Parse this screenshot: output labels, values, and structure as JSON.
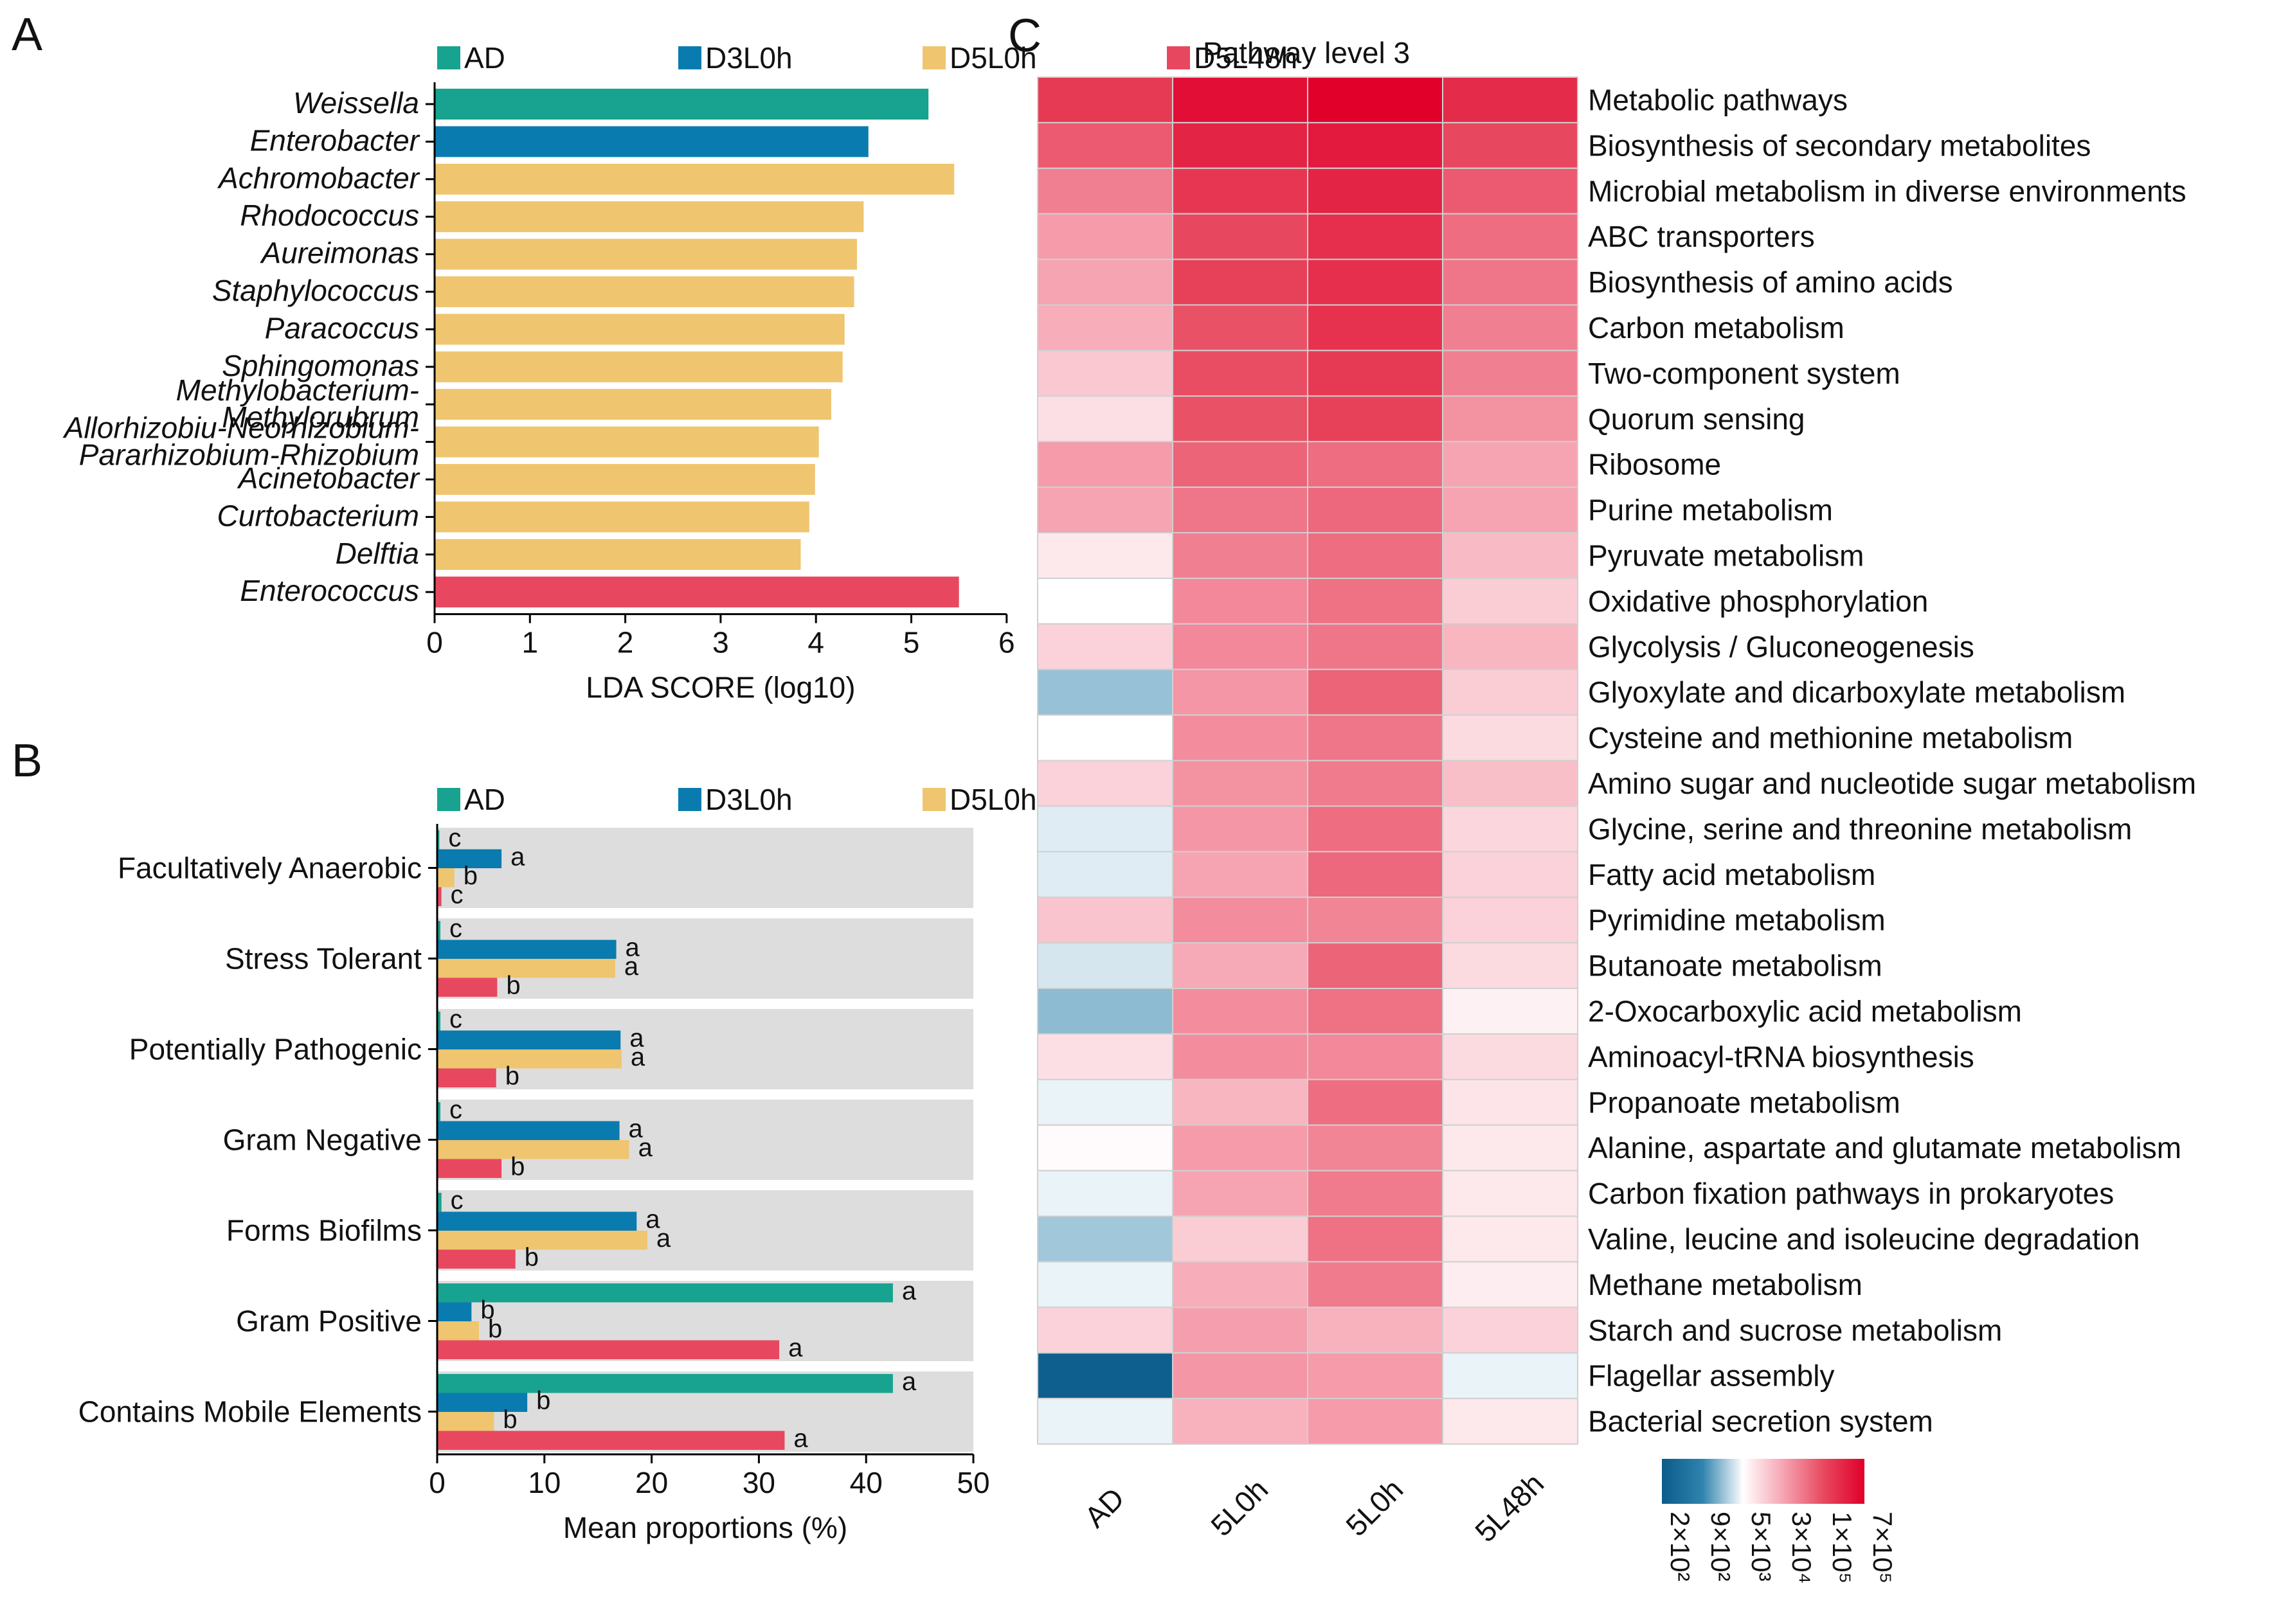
{
  "colors": {
    "AD": "#17a38f",
    "D3L0h": "#0a7bae",
    "D5L0h": "#efc56f",
    "D5L48h": "#e8485f",
    "panel_bg": "#dddddd"
  },
  "legend": [
    {
      "key": "AD",
      "label": "AD"
    },
    {
      "key": "D3L0h",
      "label": "D3L0h"
    },
    {
      "key": "D5L0h",
      "label": "D5L0h"
    },
    {
      "key": "D5L48h",
      "label": "D5L48h"
    }
  ],
  "panels": {
    "A": "A",
    "B": "B",
    "C": "C"
  },
  "chart_data": [
    {
      "panel": "A",
      "type": "bar",
      "orientation": "horizontal",
      "xlabel": "LDA SCORE (log10)",
      "xlim": [
        0,
        6
      ],
      "xticks": [
        "0",
        "1",
        "2",
        "3",
        "4",
        "5",
        "6"
      ],
      "bars": [
        {
          "label": [
            "Weissella"
          ],
          "group": "AD",
          "value": 5.18
        },
        {
          "label": [
            "Enterobacter"
          ],
          "group": "D3L0h",
          "value": 4.55
        },
        {
          "label": [
            "Achromobacter"
          ],
          "group": "D5L0h",
          "value": 5.45
        },
        {
          "label": [
            "Rhodococcus"
          ],
          "group": "D5L0h",
          "value": 4.5
        },
        {
          "label": [
            "Aureimonas"
          ],
          "group": "D5L0h",
          "value": 4.43
        },
        {
          "label": [
            "Staphylococcus"
          ],
          "group": "D5L0h",
          "value": 4.4
        },
        {
          "label": [
            "Paracoccus"
          ],
          "group": "D5L0h",
          "value": 4.3
        },
        {
          "label": [
            "Sphingomonas"
          ],
          "group": "D5L0h",
          "value": 4.28
        },
        {
          "label": [
            "Methylobacterium-",
            "Methylorubrum"
          ],
          "group": "D5L0h",
          "value": 4.16
        },
        {
          "label": [
            "Allorhizobiu-Neorhizobium-",
            "Pararhizobium-Rhizobium"
          ],
          "group": "D5L0h",
          "value": 4.03
        },
        {
          "label": [
            "Acinetobacter"
          ],
          "group": "D5L0h",
          "value": 3.99
        },
        {
          "label": [
            "Curtobacterium"
          ],
          "group": "D5L0h",
          "value": 3.93
        },
        {
          "label": [
            "Delftia"
          ],
          "group": "D5L0h",
          "value": 3.84
        },
        {
          "label": [
            "Enterococcus"
          ],
          "group": "D5L48h",
          "value": 5.5
        }
      ]
    },
    {
      "panel": "B",
      "type": "bar",
      "orientation": "horizontal",
      "xlabel": "Mean proportions (%)",
      "xlim": [
        0,
        50
      ],
      "xticks": [
        "0",
        "10",
        "20",
        "30",
        "40",
        "50"
      ],
      "series_order": [
        "AD",
        "D3L0h",
        "D5L0h",
        "D5L48h"
      ],
      "categories": [
        {
          "label": "Facultatively Anaerobic",
          "values": [
            0.2,
            6,
            1.6,
            0.4
          ],
          "letters": [
            "c",
            "a",
            "b",
            "c"
          ]
        },
        {
          "label": "Stress Tolerant",
          "values": [
            0.3,
            16.7,
            16.6,
            5.6
          ],
          "letters": [
            "c",
            "a",
            "a",
            "b"
          ]
        },
        {
          "label": "Potentially Pathogenic",
          "values": [
            0.3,
            17.1,
            17.2,
            5.5
          ],
          "letters": [
            "c",
            "a",
            "a",
            "b"
          ]
        },
        {
          "label": "Gram Negative",
          "values": [
            0.3,
            17,
            17.9,
            6
          ],
          "letters": [
            "c",
            "a",
            "a",
            "b"
          ]
        },
        {
          "label": "Forms Biofilms",
          "values": [
            0.4,
            18.6,
            19.6,
            7.3
          ],
          "letters": [
            "c",
            "a",
            "a",
            "b"
          ]
        },
        {
          "label": "Gram Positive",
          "values": [
            42.5,
            3.2,
            3.9,
            31.9
          ],
          "letters": [
            "a",
            "b",
            "b",
            "a"
          ]
        },
        {
          "label": "Contains Mobile Elements",
          "values": [
            42.5,
            8.4,
            5.3,
            32.4
          ],
          "letters": [
            "a",
            "b",
            "b",
            "a"
          ]
        }
      ]
    },
    {
      "panel": "C",
      "type": "heatmap",
      "title": "Pathway level 3",
      "columns": [
        "AD",
        "5L0h",
        "5L0h",
        "5L48h"
      ],
      "colorbar": {
        "labels": [
          "2×10²",
          "9×10²",
          "5×10³",
          "3×10⁴",
          "1×10⁵",
          "7×10⁵"
        ],
        "colors": [
          "#0b5b8a",
          "#2f83ad",
          "#ffffff",
          "#f6a4b2",
          "#e8485f",
          "#e0002a"
        ]
      },
      "rows": [
        {
          "label": "Metabolic pathways",
          "values": [
            0.84,
            0.96,
            1.0,
            0.88
          ]
        },
        {
          "label": "Biosynthesis of secondary metabolites",
          "values": [
            0.76,
            0.9,
            0.93,
            0.8
          ]
        },
        {
          "label": "Microbial metabolism in diverse environments",
          "values": [
            0.68,
            0.85,
            0.9,
            0.76
          ]
        },
        {
          "label": "ABC transporters",
          "values": [
            0.62,
            0.8,
            0.87,
            0.72
          ]
        },
        {
          "label": "Biosynthesis of amino acids",
          "values": [
            0.6,
            0.82,
            0.87,
            0.7
          ]
        },
        {
          "label": "Carbon metabolism",
          "values": [
            0.58,
            0.78,
            0.86,
            0.68
          ]
        },
        {
          "label": "Two-component system",
          "values": [
            0.52,
            0.79,
            0.84,
            0.68
          ]
        },
        {
          "label": "Quorum sensing",
          "values": [
            0.47,
            0.78,
            0.82,
            0.64
          ]
        },
        {
          "label": "Ribosome",
          "values": [
            0.62,
            0.74,
            0.72,
            0.6
          ]
        },
        {
          "label": "Purine metabolism",
          "values": [
            0.6,
            0.7,
            0.73,
            0.6
          ]
        },
        {
          "label": "Pyruvate metabolism",
          "values": [
            0.45,
            0.68,
            0.72,
            0.55
          ]
        },
        {
          "label": "Oxidative phosphorylation",
          "values": [
            0.4,
            0.66,
            0.71,
            0.51
          ]
        },
        {
          "label": "Glycolysis / Gluconeogenesis",
          "values": [
            0.5,
            0.66,
            0.7,
            0.56
          ]
        },
        {
          "label": "Glyoxylate and dicarboxylate metabolism",
          "values": [
            0.3,
            0.63,
            0.74,
            0.51
          ]
        },
        {
          "label": "Cysteine and methionine metabolism",
          "values": [
            0.4,
            0.65,
            0.7,
            0.48
          ]
        },
        {
          "label": "Amino sugar and nucleotide sugar metabolism",
          "values": [
            0.5,
            0.64,
            0.69,
            0.54
          ]
        },
        {
          "label": "Glycine, serine and threonine metabolism",
          "values": [
            0.37,
            0.63,
            0.72,
            0.49
          ]
        },
        {
          "label": "Fatty acid metabolism",
          "values": [
            0.37,
            0.6,
            0.73,
            0.5
          ]
        },
        {
          "label": "Pyrimidine metabolism",
          "values": [
            0.53,
            0.65,
            0.67,
            0.5
          ]
        },
        {
          "label": "Butanoate metabolism",
          "values": [
            0.36,
            0.59,
            0.74,
            0.48
          ]
        },
        {
          "label": "2-Oxocarboxylic acid metabolism",
          "values": [
            0.29,
            0.65,
            0.71,
            0.43
          ]
        },
        {
          "label": "Aminoacyl-tRNA biosynthesis",
          "values": [
            0.47,
            0.65,
            0.66,
            0.48
          ]
        },
        {
          "label": "Propanoate metabolism",
          "values": [
            0.38,
            0.56,
            0.72,
            0.46
          ]
        },
        {
          "label": "Alanine, aspartate and glutamate metabolism",
          "values": [
            0.41,
            0.62,
            0.67,
            0.45
          ]
        },
        {
          "label": "Carbon fixation pathways in prokaryotes",
          "values": [
            0.38,
            0.6,
            0.69,
            0.45
          ]
        },
        {
          "label": "Valine, leucine and isoleucine degradation",
          "values": [
            0.31,
            0.51,
            0.71,
            0.45
          ]
        },
        {
          "label": "Methane metabolism",
          "values": [
            0.38,
            0.58,
            0.69,
            0.44
          ]
        },
        {
          "label": "Starch and sucrose metabolism",
          "values": [
            0.5,
            0.61,
            0.57,
            0.5
          ]
        },
        {
          "label": "Flagellar assembly",
          "values": [
            0.02,
            0.63,
            0.62,
            0.38
          ]
        },
        {
          "label": "Bacterial secretion system",
          "values": [
            0.38,
            0.57,
            0.62,
            0.45
          ]
        }
      ]
    }
  ]
}
